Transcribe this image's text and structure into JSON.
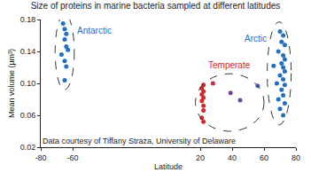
{
  "chart_data": {
    "type": "scatter",
    "title": "Size of proteins in marine bacteria sampled at different latitudes",
    "x_label": "Latitude",
    "y_label": "Mean volume (µm³)",
    "annotations": [
      "Data courtesy of Tiffany Straza, University of Delaware"
    ],
    "xlim": [
      -80,
      80
    ],
    "xticks": [
      -80,
      -60,
      20,
      40,
      60,
      80
    ],
    "ylim": [
      0.02,
      0.18
    ],
    "yticks": [
      {
        "value": 0.02,
        "label": "0.02"
      },
      {
        "value": 0.06,
        "label": "0.06"
      },
      {
        "value": 0.1,
        "label": "0.10"
      },
      {
        "value": 0.14,
        "label": "0.14"
      },
      {
        "value": 0.18,
        "label": "0.18"
      }
    ],
    "grid": false,
    "marker": "circle",
    "series": [
      {
        "name": "Antarctic",
        "color": "#1f6fc5",
        "x": [
          -66,
          -65,
          -64,
          -65,
          -64,
          -63,
          -67,
          -65,
          -64,
          -65
        ],
        "values": [
          0.175,
          0.168,
          0.162,
          0.155,
          0.146,
          0.142,
          0.136,
          0.128,
          0.121,
          0.104
        ]
      },
      {
        "name": "Temperate",
        "color": "#d9262b",
        "colors": [
          "#d9262b",
          "#d9262b",
          "#d9262b",
          "#d9262b",
          "#d9262b",
          "#d9262b",
          "#d9262b",
          "#d9262b",
          "#d9262b",
          "#d9262b",
          "#c0304a",
          "#7a3f8f",
          "#6a4a9a",
          "#4a5fb0"
        ],
        "x": [
          22,
          21,
          22,
          21,
          22,
          21,
          22,
          22,
          21,
          22,
          28,
          39,
          45,
          56
        ],
        "values": [
          0.098,
          0.094,
          0.09,
          0.086,
          0.082,
          0.078,
          0.072,
          0.066,
          0.057,
          0.052,
          0.1,
          0.088,
          0.079,
          0.097
        ]
      },
      {
        "name": "Arctic",
        "color": "#1f6fc5",
        "x": [
          70,
          72,
          71,
          73,
          69,
          72,
          73,
          71,
          72,
          66,
          73,
          70,
          72,
          68,
          73,
          71,
          72,
          69,
          73,
          70,
          72
        ],
        "values": [
          0.165,
          0.16,
          0.152,
          0.148,
          0.14,
          0.135,
          0.13,
          0.125,
          0.12,
          0.122,
          0.115,
          0.11,
          0.105,
          0.1,
          0.098,
          0.092,
          0.085,
          0.08,
          0.075,
          0.068,
          0.06
        ]
      }
    ]
  }
}
